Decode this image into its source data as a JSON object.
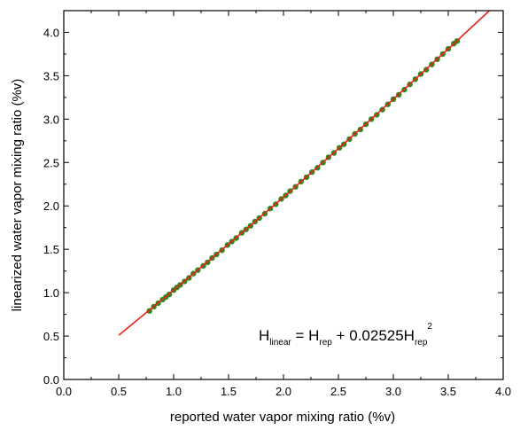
{
  "chart_data": {
    "type": "scatter",
    "title": "",
    "xlabel": "reported water vapor mixing ratio (%v)",
    "ylabel": "linearized water vapor mixing ratio (%v)",
    "xlim": [
      0.0,
      4.0
    ],
    "ylim": [
      0.0,
      4.25
    ],
    "x_ticks": [
      "0.0",
      "0.5",
      "1.0",
      "1.5",
      "2.0",
      "2.5",
      "3.0",
      "3.5",
      "4.0"
    ],
    "y_ticks": [
      "0.0",
      "0.5",
      "1.0",
      "1.5",
      "2.0",
      "2.5",
      "3.0",
      "3.5",
      "4.0"
    ],
    "grid": false,
    "annotation": {
      "parts": [
        {
          "text": "H",
          "role": "base"
        },
        {
          "text": "linear",
          "role": "sub"
        },
        {
          "text": " = H",
          "role": "base"
        },
        {
          "text": "rep",
          "role": "sub"
        },
        {
          "text": " + 0.02525H",
          "role": "base"
        },
        {
          "text": "rep",
          "role": "sub"
        },
        {
          "text": "2",
          "role": "sup"
        }
      ]
    },
    "series": [
      {
        "kind": "points",
        "color": "#2e8b1e",
        "x": [
          0.78,
          0.82,
          0.86,
          0.9,
          0.93,
          0.96,
          1.0,
          1.03,
          1.06,
          1.1,
          1.14,
          1.18,
          1.22,
          1.27,
          1.31,
          1.35,
          1.39,
          1.44,
          1.49,
          1.53,
          1.57,
          1.62,
          1.66,
          1.7,
          1.74,
          1.78,
          1.83,
          1.88,
          1.93,
          1.98,
          2.02,
          2.06,
          2.11,
          2.16,
          2.21,
          2.26,
          2.31,
          2.36,
          2.41,
          2.46,
          2.51,
          2.55,
          2.6,
          2.65,
          2.7,
          2.75,
          2.8,
          2.85,
          2.9,
          2.95,
          3.0,
          3.05,
          3.1,
          3.15,
          3.2,
          3.25,
          3.3,
          3.35,
          3.4,
          3.45,
          3.5,
          3.55,
          3.58
        ],
        "y": [
          0.79,
          0.84,
          0.88,
          0.92,
          0.95,
          0.98,
          1.03,
          1.06,
          1.09,
          1.13,
          1.17,
          1.22,
          1.26,
          1.31,
          1.35,
          1.4,
          1.44,
          1.49,
          1.55,
          1.59,
          1.63,
          1.69,
          1.73,
          1.77,
          1.82,
          1.86,
          1.91,
          1.97,
          2.02,
          2.08,
          2.12,
          2.17,
          2.22,
          2.28,
          2.33,
          2.39,
          2.44,
          2.5,
          2.56,
          2.61,
          2.67,
          2.71,
          2.77,
          2.83,
          2.88,
          2.94,
          3.0,
          3.05,
          3.11,
          3.17,
          3.23,
          3.28,
          3.34,
          3.4,
          3.46,
          3.52,
          3.57,
          3.63,
          3.69,
          3.75,
          3.81,
          3.87,
          3.9
        ]
      },
      {
        "kind": "fit-line",
        "color": "#e8201a",
        "x": [
          0.5,
          1.0,
          1.5,
          2.0,
          2.5,
          3.0,
          3.5,
          3.9
        ],
        "y": [
          0.51,
          1.03,
          1.56,
          2.1,
          2.66,
          3.23,
          3.81,
          4.28
        ]
      }
    ]
  }
}
